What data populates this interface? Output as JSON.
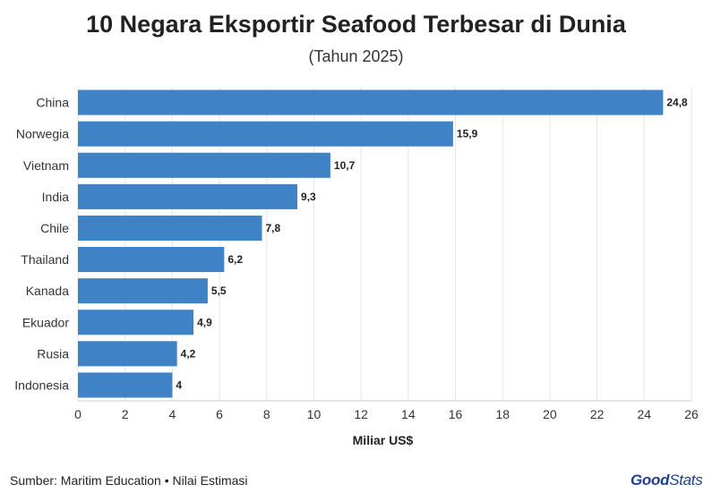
{
  "chart_data": {
    "type": "bar",
    "orientation": "horizontal",
    "title": "10 Negara Eksportir Seafood Terbesar di Dunia",
    "subtitle": "(Tahun 2025)",
    "categories": [
      "China",
      "Norwegia",
      "Vietnam",
      "India",
      "Chile",
      "Thailand",
      "Kanada",
      "Ekuador",
      "Rusia",
      "Indonesia"
    ],
    "values": [
      24.8,
      15.9,
      10.7,
      9.3,
      7.8,
      6.2,
      5.5,
      4.9,
      4.2,
      4
    ],
    "value_labels": [
      "24,8",
      "15,9",
      "10,7",
      "9,3",
      "7,8",
      "6,2",
      "5,5",
      "4,9",
      "4,2",
      "4"
    ],
    "xlabel": "Miliar US$",
    "xlim": [
      0,
      26
    ],
    "xticks": [
      0,
      2,
      4,
      6,
      8,
      10,
      12,
      14,
      16,
      18,
      20,
      22,
      24,
      26
    ],
    "grid": true,
    "bar_color": "#3f82c6"
  },
  "footer": {
    "source": "Sumber: Maritim Education • Nilai Estimasi",
    "logo_good": "Good",
    "logo_stats": "Stats"
  }
}
